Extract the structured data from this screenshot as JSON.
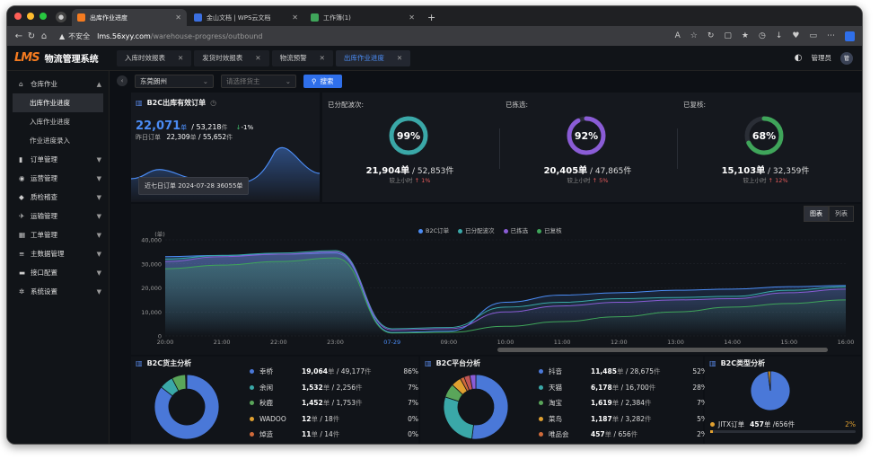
{
  "browser": {
    "tabs": [
      {
        "label": "出库作业进度",
        "active": true,
        "color": "#f47b20"
      },
      {
        "label": "金山文档 | WPS云文档",
        "active": false,
        "color": "#3b6fe0"
      },
      {
        "label": "工作簿(1)",
        "active": false,
        "color": "#3fa55a"
      }
    ],
    "insecure_label": "不安全",
    "url_host": "lms.56xyy.com",
    "url_path": "/warehouse-progress/outbound"
  },
  "app": {
    "logo": "LMS",
    "title": "物流管理系统",
    "page_tabs": [
      {
        "label": "入库时效报表",
        "active": false
      },
      {
        "label": "发货时效报表",
        "active": false
      },
      {
        "label": "物流预警",
        "active": false
      },
      {
        "label": "出库作业进度",
        "active": true
      }
    ],
    "user": "管理员",
    "avatar": "管"
  },
  "sidebar": {
    "groups": [
      {
        "label": "仓库作业",
        "icon": "warehouse-icon",
        "open": true,
        "subs": [
          {
            "label": "出库作业进度",
            "active": true
          },
          {
            "label": "入库作业进度",
            "active": false
          },
          {
            "label": "作业进度录入",
            "active": false
          }
        ]
      },
      {
        "label": "订单管理",
        "icon": "order-icon"
      },
      {
        "label": "运营管理",
        "icon": "operation-icon"
      },
      {
        "label": "质检稽查",
        "icon": "inspection-icon"
      },
      {
        "label": "运输管理",
        "icon": "transport-icon"
      },
      {
        "label": "工单管理",
        "icon": "ticket-icon"
      },
      {
        "label": "主数据管理",
        "icon": "master-data-icon"
      },
      {
        "label": "接口配置",
        "icon": "interface-icon"
      },
      {
        "label": "系统设置",
        "icon": "settings-icon"
      }
    ]
  },
  "filter": {
    "warehouse_value": "东莞朗州",
    "owner_placeholder": "请选择货主",
    "search_label": "搜索"
  },
  "b2c": {
    "title": "B2C出库有效订单",
    "today_orders": "22,071",
    "order_unit": "单",
    "today_pieces": "53,218",
    "piece_unit": "件",
    "change": "-1%",
    "yesterday_label": "昨日订单",
    "yesterday_orders": "22,309",
    "yesterday_pieces": "55,652",
    "tooltip": "近七日订单 2024-07-28 36055单"
  },
  "stats": [
    {
      "label": "已分配波次:",
      "pct": "99%",
      "pct_value": 0.99,
      "color": "#3aa8a8",
      "orders": "21,904",
      "pieces": "52,853",
      "cmp_label": "较上小时",
      "cmp": "1%"
    },
    {
      "label": "已拣选:",
      "pct": "92%",
      "pct_value": 0.92,
      "color": "#8a5cd6",
      "orders": "20,405",
      "pieces": "47,865",
      "cmp_label": "较上小时",
      "cmp": "5%"
    },
    {
      "label": "已复核:",
      "pct": "68%",
      "pct_value": 0.68,
      "color": "#3fa55a",
      "orders": "15,103",
      "pieces": "32,359",
      "cmp_label": "较上小时",
      "cmp": "12%"
    }
  ],
  "view_toggle": {
    "chart": "图表",
    "list": "列表"
  },
  "chart_data": {
    "type": "line",
    "ylabel": "(单)",
    "ylim": [
      0,
      40000
    ],
    "yticks": [
      "40,000",
      "30,000",
      "20,000",
      "10,000",
      "0"
    ],
    "x": [
      "20:00",
      "21:00",
      "22:00",
      "23:00",
      "07-29",
      "09:00",
      "10:00",
      "11:00",
      "12:00",
      "13:00",
      "14:00",
      "15:00",
      "16:00"
    ],
    "series": [
      {
        "name": "B2C订单",
        "color": "#4b8cf5",
        "values": [
          33000,
          33500,
          34000,
          34500,
          1500,
          2000,
          14000,
          17000,
          18000,
          19000,
          19500,
          20500,
          21000
        ]
      },
      {
        "name": "已分配波次",
        "color": "#3aa8a8",
        "values": [
          32000,
          33500,
          34500,
          35500,
          3000,
          3500,
          12000,
          14000,
          15500,
          16000,
          16500,
          19000,
          20500
        ]
      },
      {
        "name": "已拣选",
        "color": "#8a5cd6",
        "values": [
          31000,
          33000,
          34000,
          35000,
          2500,
          3000,
          10000,
          12500,
          14000,
          15000,
          15500,
          18000,
          19500
        ]
      },
      {
        "name": "已复核",
        "color": "#3fa55a",
        "values": [
          28000,
          29500,
          31000,
          32500,
          1200,
          1500,
          4000,
          6000,
          8000,
          10000,
          12000,
          13500,
          15000
        ]
      }
    ]
  },
  "owner_analysis": {
    "title": "B2C货主分析",
    "items": [
      {
        "name": "幸桥",
        "orders": "19,064",
        "pieces": "49,177",
        "pct": "86%",
        "color": "#4a78d8",
        "value": 86
      },
      {
        "name": "余闲",
        "orders": "1,532",
        "pieces": "2,256",
        "pct": "7%",
        "color": "#3aa8a8",
        "value": 7
      },
      {
        "name": "秋鹿",
        "orders": "1,452",
        "pieces": "1,753",
        "pct": "7%",
        "color": "#5aa65a",
        "value": 7
      },
      {
        "name": "WADOO",
        "orders": "12",
        "pieces": "18",
        "pct": "0%",
        "color": "#e0a030",
        "value": 0.3
      },
      {
        "name": "焯造",
        "orders": "11",
        "pieces": "14",
        "pct": "0%",
        "color": "#d06a3a",
        "value": 0.3
      }
    ]
  },
  "platform_analysis": {
    "title": "B2C平台分析",
    "items": [
      {
        "name": "抖音",
        "orders": "11,485",
        "pieces": "28,675",
        "pct": "52%",
        "color": "#4a78d8",
        "value": 52
      },
      {
        "name": "天猫",
        "orders": "6,178",
        "pieces": "16,700",
        "pct": "28%",
        "color": "#3aa8a8",
        "value": 28
      },
      {
        "name": "淘宝",
        "orders": "1,619",
        "pieces": "2,384",
        "pct": "7%",
        "color": "#5aa65a",
        "value": 7
      },
      {
        "name": "菜鸟",
        "orders": "1,187",
        "pieces": "3,282",
        "pct": "5%",
        "color": "#e0a030",
        "value": 5
      },
      {
        "name": "唯品会",
        "orders": "457",
        "pieces": "656",
        "pct": "2%",
        "color": "#d06a3a",
        "value": 2
      }
    ],
    "extra_slices": [
      {
        "color": "#c05555",
        "value": 3
      },
      {
        "color": "#8a5cd6",
        "value": 3
      }
    ]
  },
  "type_analysis": {
    "title": "B2C类型分析",
    "item": {
      "name": "JITX订单",
      "orders": "457",
      "pieces": "656",
      "pct": "2%",
      "color": "#e0a030"
    },
    "pie": [
      {
        "color": "#4a78d8",
        "value": 98
      },
      {
        "color": "#e0a030",
        "value": 2
      }
    ]
  }
}
